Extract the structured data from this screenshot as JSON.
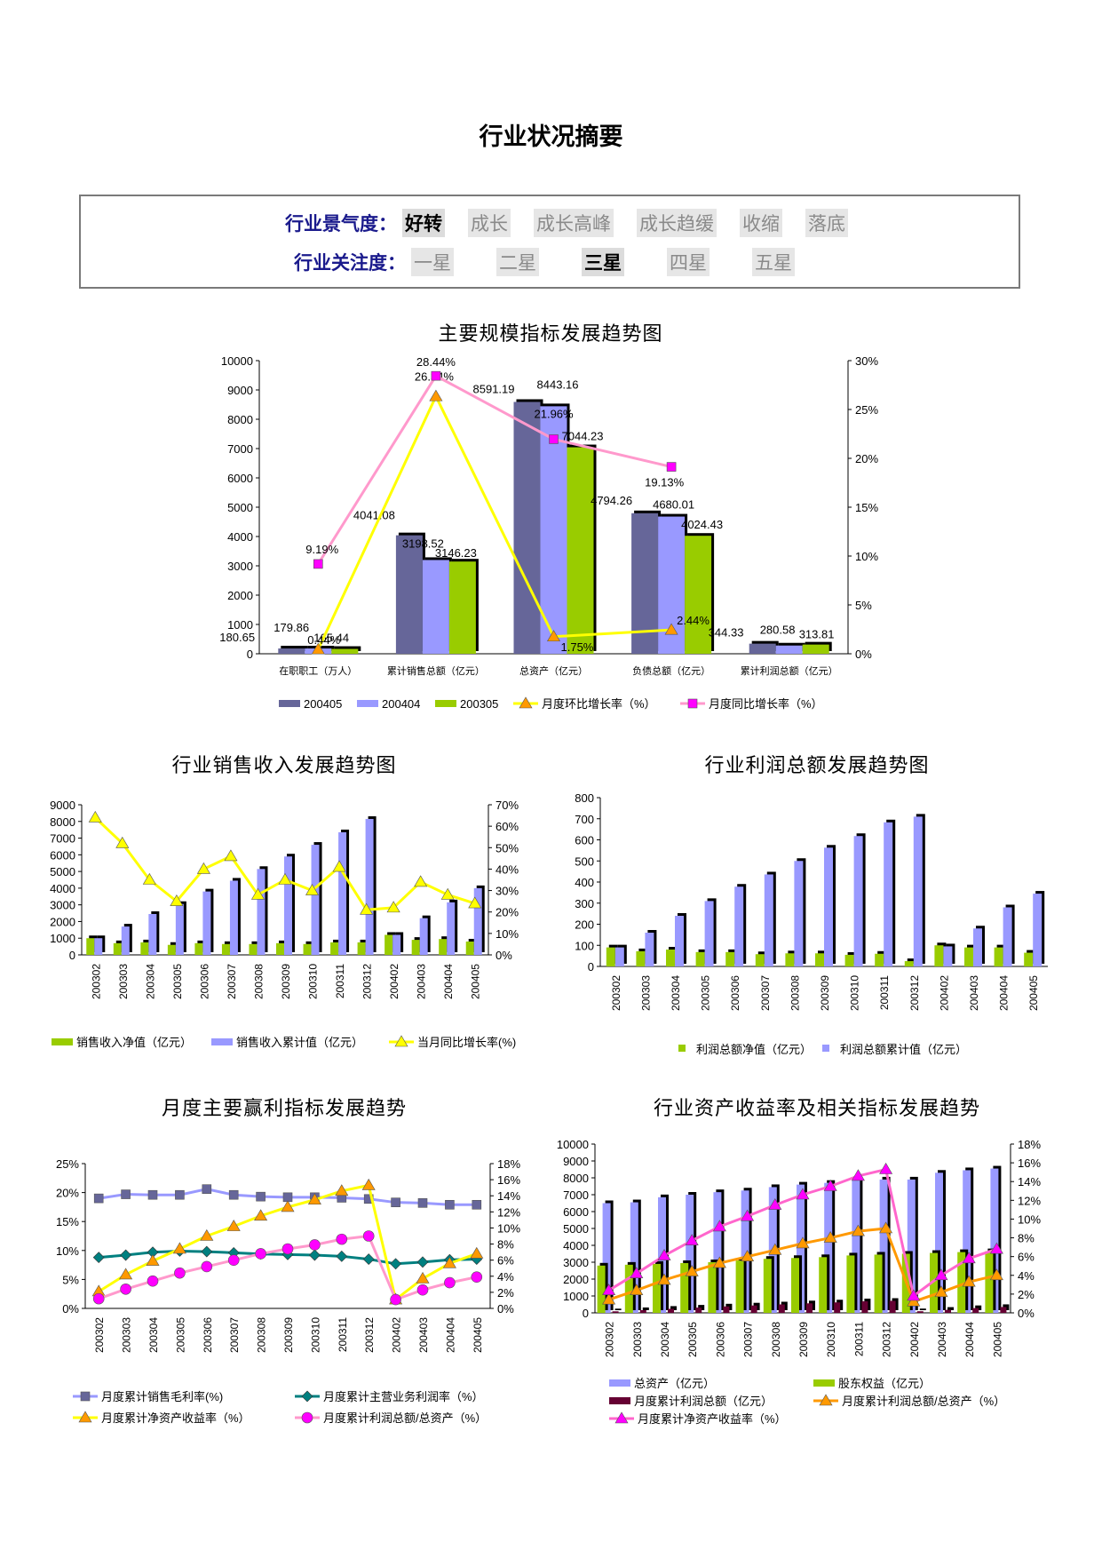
{
  "page": {
    "title": "行业状况摘要",
    "boom": {
      "label": "行业景气度",
      "options": [
        "好转",
        "成长",
        "成长高峰",
        "成长趋缓",
        "收缩",
        "落底"
      ],
      "selected": 0
    },
    "attention": {
      "label": "行业关注度",
      "options": [
        "一星",
        "二星",
        "三星",
        "四星",
        "五星"
      ],
      "selected": 2
    }
  },
  "colors": {
    "s200405": "#666699",
    "s200404": "#9999ff",
    "s200305": "#99cc00",
    "yellow": "#ffff00",
    "magenta": "#ff00ff",
    "pink": "#ff99cc",
    "orange": "#ff9900",
    "darkred": "#660033",
    "green": "#008080",
    "navy": "#666699"
  },
  "chart_data": [
    {
      "id": "main",
      "type": "bar",
      "title": "主要规模指标发展趋势图",
      "categories": [
        "在职职工（万人）",
        "累计销售总额（亿元）",
        "总资产（亿元）",
        "负债总额（亿元）",
        "累计利润总额（亿元）"
      ],
      "ylim": [
        0,
        10000
      ],
      "y2lim": [
        0,
        30
      ],
      "yticks": [
        "0",
        "1000",
        "2000",
        "3000",
        "4000",
        "5000",
        "6000",
        "7000",
        "8000",
        "9000",
        "10000"
      ],
      "y2ticks": [
        "0%",
        "5%",
        "10%",
        "15%",
        "20%",
        "25%",
        "30%"
      ],
      "series": [
        {
          "name": "200405",
          "values": [
            180.65,
            4041.08,
            8591.19,
            4794.26,
            344.33
          ],
          "labels": [
            "180.65",
            "4041.08",
            "8591.19",
            "4794.26",
            "344.33"
          ]
        },
        {
          "name": "200404",
          "values": [
            179.86,
            3198.52,
            8443.16,
            4680.01,
            280.58
          ],
          "labels": [
            "179.86",
            "3198.52",
            "8443.16",
            "4680.01",
            "280.58"
          ]
        },
        {
          "name": "200305",
          "values": [
            165.44,
            3146.23,
            7044.23,
            4024.43,
            313.81
          ],
          "labels": [
            "165.44",
            "3146.23",
            "7044.23",
            "4024.43",
            "313.81"
          ]
        }
      ],
      "lines": [
        {
          "name": "月度环比增长率（%）",
          "values": [
            0.44,
            26.34,
            1.75,
            2.44
          ],
          "labels": [
            "0.44%",
            "26.34%",
            "1.75%",
            "2.44%"
          ]
        },
        {
          "name": "月度同比增长率（%）",
          "values": [
            9.19,
            28.44,
            21.96,
            19.13
          ],
          "labels": [
            "9.19%",
            "28.44%",
            "21.96%",
            "19.13%"
          ]
        }
      ]
    },
    {
      "id": "sales",
      "type": "bar",
      "title": "行业销售收入发展趋势图",
      "categories": [
        "200302",
        "200303",
        "200304",
        "200305",
        "200306",
        "200307",
        "200308",
        "200309",
        "200310",
        "200311",
        "200312",
        "200402",
        "200403",
        "200404",
        "200405"
      ],
      "ylim": [
        0,
        9000
      ],
      "y2lim": [
        0,
        70
      ],
      "yticks": [
        "0",
        "1000",
        "2000",
        "3000",
        "4000",
        "5000",
        "6000",
        "7000",
        "8000",
        "9000"
      ],
      "y2ticks": [
        "0%",
        "10%",
        "20%",
        "30%",
        "40%",
        "50%",
        "60%",
        "70%"
      ],
      "series": [
        {
          "name": "销售收入净值（亿元）",
          "values": [
            1000,
            700,
            750,
            600,
            700,
            650,
            650,
            700,
            650,
            750,
            750,
            1200,
            900,
            950,
            800
          ]
        },
        {
          "name": "销售收入累计值（亿元）",
          "values": [
            1000,
            1700,
            2450,
            3050,
            3800,
            4450,
            5150,
            5900,
            6600,
            7350,
            8150,
            1200,
            2200,
            3150,
            4000
          ]
        }
      ],
      "lines": [
        {
          "name": "当月同比增长率(%)",
          "values": [
            64,
            52,
            35,
            25,
            40,
            46,
            28,
            35,
            30,
            41,
            21,
            22,
            34,
            28,
            24
          ]
        }
      ]
    },
    {
      "id": "profit",
      "type": "bar",
      "title": "行业利润总额发展趋势图",
      "categories": [
        "200302",
        "200303",
        "200304",
        "200305",
        "200306",
        "200307",
        "200308",
        "200309",
        "200310",
        "200311",
        "200312",
        "200402",
        "200403",
        "200404",
        "200405"
      ],
      "ylim": [
        0,
        800
      ],
      "yticks": [
        "0",
        "100",
        "200",
        "300",
        "400",
        "500",
        "600",
        "700",
        "800"
      ],
      "series": [
        {
          "name": "利润总额净值（亿元）",
          "values": [
            90,
            72,
            80,
            68,
            68,
            58,
            62,
            62,
            55,
            60,
            25,
            100,
            90,
            90,
            65
          ]
        },
        {
          "name": "利润总额累计值（亿元）",
          "values": [
            90,
            160,
            240,
            310,
            378,
            436,
            500,
            563,
            618,
            683,
            710,
            95,
            180,
            280,
            345
          ]
        }
      ]
    },
    {
      "id": "margin",
      "type": "line",
      "title": "月度主要赢利指标发展趋势",
      "categories": [
        "200302",
        "200303",
        "200304",
        "200305",
        "200306",
        "200307",
        "200308",
        "200309",
        "200310",
        "200311",
        "200312",
        "200402",
        "200403",
        "200404",
        "200405"
      ],
      "ylim": [
        0,
        25
      ],
      "y2lim": [
        0,
        18
      ],
      "yticks": [
        "0%",
        "5%",
        "10%",
        "15%",
        "20%",
        "25%"
      ],
      "y2ticks": [
        "0%",
        "2%",
        "4%",
        "6%",
        "8%",
        "10%",
        "12%",
        "14%",
        "16%",
        "18%"
      ],
      "series": [
        {
          "name": "月度累计销售毛利率(%)",
          "axis": "left",
          "values": [
            19,
            19.7,
            19.6,
            19.6,
            20.6,
            19.6,
            19.3,
            19.2,
            19.2,
            19.1,
            18.9,
            18.3,
            18.2,
            17.9,
            17.9
          ]
        },
        {
          "name": "月度累计主营业务利润率（%）",
          "axis": "left",
          "values": [
            8.8,
            9.2,
            9.7,
            9.9,
            9.8,
            9.6,
            9.4,
            9.3,
            9.2,
            9,
            8.5,
            7.7,
            8,
            8.4,
            8.5
          ]
        },
        {
          "name": "月度累计净资产收益率（%）",
          "axis": "right",
          "values": [
            2.1,
            4.2,
            5.9,
            7.4,
            9,
            10.2,
            11.5,
            12.6,
            13.5,
            14.6,
            15.3,
            1.1,
            3.7,
            5.6,
            6.8
          ]
        },
        {
          "name": "月度累计利润总额/总资产（%）",
          "axis": "right",
          "values": [
            1.2,
            2.4,
            3.4,
            4.4,
            5.2,
            6,
            6.8,
            7.4,
            7.9,
            8.6,
            9,
            1.1,
            2.3,
            3.2,
            3.9
          ]
        }
      ]
    },
    {
      "id": "assets",
      "type": "bar",
      "title": "行业资产收益率及相关指标发展趋势",
      "categories": [
        "200302",
        "200303",
        "200304",
        "200305",
        "200306",
        "200307",
        "200308",
        "200309",
        "200310",
        "200311",
        "200312",
        "200402",
        "200403",
        "200404",
        "200405"
      ],
      "ylim": [
        0,
        10000
      ],
      "y2lim": [
        0,
        18
      ],
      "yticks": [
        "0",
        "1000",
        "2000",
        "3000",
        "4000",
        "5000",
        "6000",
        "7000",
        "8000",
        "9000",
        "10000"
      ],
      "y2ticks": [
        "0%",
        "2%",
        "4%",
        "6%",
        "8%",
        "10%",
        "12%",
        "14%",
        "16%",
        "18%"
      ],
      "series": [
        {
          "name": "总资产（亿元）",
          "values": [
            6500,
            6550,
            6850,
            7000,
            7150,
            7250,
            7450,
            7600,
            7700,
            7850,
            7900,
            7900,
            8300,
            8450,
            8550
          ]
        },
        {
          "name": "股东权益（亿元）",
          "values": [
            2800,
            2850,
            2900,
            2950,
            3000,
            3100,
            3200,
            3250,
            3300,
            3400,
            3450,
            3500,
            3550,
            3600,
            3650
          ]
        },
        {
          "name": "月度累计利润总额（亿元）",
          "values": [
            90,
            160,
            240,
            310,
            378,
            436,
            500,
            563,
            618,
            683,
            710,
            95,
            180,
            280,
            345
          ]
        }
      ],
      "lines": [
        {
          "name": "月度累计利润总额/总资产（%）",
          "values": [
            1.4,
            2.4,
            3.5,
            4.4,
            5.3,
            6,
            6.7,
            7.4,
            8,
            8.7,
            9,
            1.2,
            2.2,
            3.3,
            4
          ]
        },
        {
          "name": "月度累计净资产收益率（%）",
          "values": [
            2.4,
            4.2,
            6.1,
            7.7,
            9.2,
            10.3,
            11.5,
            12.6,
            13.5,
            14.6,
            15.3,
            1.8,
            4,
            5.8,
            6.8
          ]
        }
      ]
    }
  ]
}
